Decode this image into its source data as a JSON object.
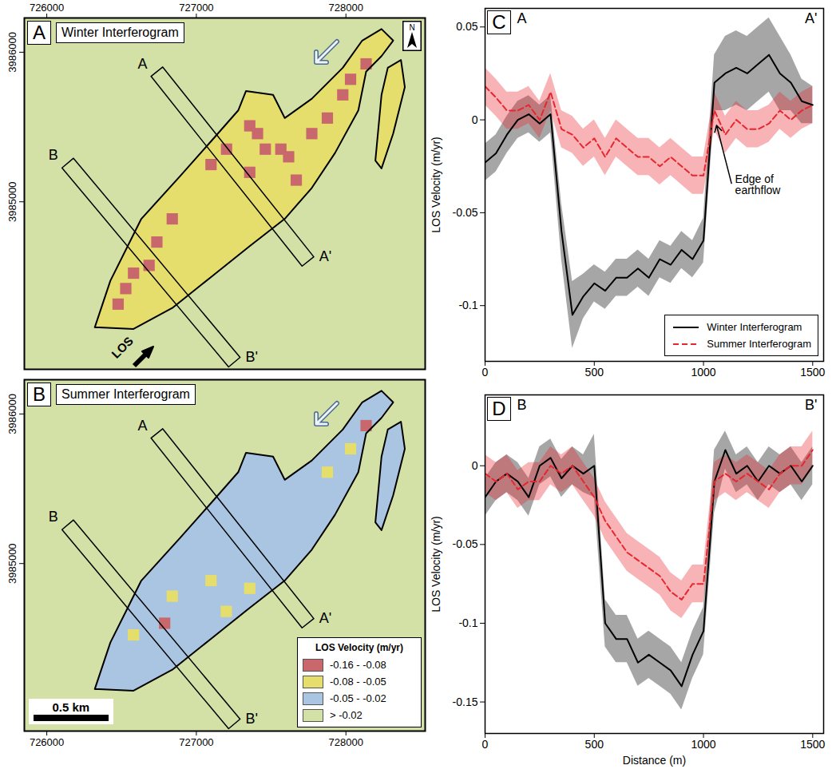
{
  "chart_data": [
    {
      "type": "map",
      "panel": "A",
      "title": "Winter Interferogram",
      "xlim": [
        725850,
        728530
      ],
      "ylim": [
        3983880,
        3986229
      ],
      "xticks": [
        726000,
        727000,
        728000
      ],
      "yticks": [
        3985000,
        3986000
      ],
      "outline": [
        {
          "x": [
            726321,
            726425,
            726632,
            726891,
            727098,
            727280,
            727332,
            727513,
            727591,
            727772,
            727979,
            728109,
            728238,
            728316,
            728238,
            728135,
            728083,
            727927,
            727772,
            727591,
            727358,
            727098,
            726839,
            726580
          ],
          "y": [
            3984161,
            3984472,
            3984886,
            3985171,
            3985404,
            3985611,
            3985741,
            3985715,
            3985560,
            3985689,
            3985896,
            3986078,
            3986155,
            3986078,
            3985974,
            3985870,
            3985611,
            3985326,
            3985093,
            3984886,
            3984705,
            3984497,
            3984290,
            3984150
          ]
        },
        {
          "x": [
            728280,
            728368,
            728394,
            728316,
            728238,
            728197,
            728238
          ],
          "y": [
            3985896,
            3985948,
            3985767,
            3985456,
            3985223,
            3985275,
            3985715
          ]
        }
      ],
      "flow_base_velocity": -0.065,
      "patches": {
        "x": [
          727357,
          727565,
          727772,
          727979,
          728135,
          727668,
          727357,
          727098,
          726736,
          726580,
          726839,
          726477,
          727202,
          727461,
          727876,
          728031,
          726684,
          726528,
          727617,
          727409
        ],
        "y": [
          3985508,
          3985352,
          3985456,
          3985715,
          3985922,
          3985145,
          3985197,
          3985249,
          3984731,
          3984523,
          3984886,
          3984316,
          3985352,
          3985352,
          3985560,
          3985819,
          3984575,
          3984420,
          3985301,
          3985456
        ],
        "values": [
          -0.1,
          -0.1,
          -0.1,
          -0.1,
          -0.1,
          -0.1,
          -0.1,
          -0.1,
          -0.1,
          -0.1,
          -0.1,
          -0.1,
          -0.1,
          -0.1,
          -0.1,
          -0.1,
          -0.1,
          -0.1,
          -0.1,
          -0.1
        ]
      },
      "profiles": [
        {
          "start": "A",
          "end": "A'",
          "x": [
            726736,
            727746
          ],
          "y": [
            3985870,
            3984601
          ]
        },
        {
          "start": "B",
          "end": "B'",
          "x": [
            726140,
            727254
          ],
          "y": [
            3985259,
            3983928
          ]
        }
      ],
      "north_label": "N",
      "los_label": "LOS"
    },
    {
      "type": "map",
      "panel": "B",
      "title": "Summer Interferogram",
      "xlim": [
        725850,
        728530
      ],
      "ylim": [
        3983880,
        3986229
      ],
      "xticks": [
        726000,
        727000,
        728000
      ],
      "yticks": [
        3985000,
        3986000
      ],
      "outline": [
        {
          "x": [
            726321,
            726425,
            726632,
            726891,
            727098,
            727280,
            727332,
            727513,
            727591,
            727772,
            727979,
            728109,
            728238,
            728316,
            728238,
            728135,
            728083,
            727927,
            727772,
            727591,
            727358,
            727098,
            726839,
            726580
          ],
          "y": [
            3984161,
            3984472,
            3984886,
            3985171,
            3985404,
            3985611,
            3985741,
            3985715,
            3985560,
            3985689,
            3985896,
            3986078,
            3986155,
            3986078,
            3985974,
            3985870,
            3985611,
            3985326,
            3985093,
            3984886,
            3984705,
            3984497,
            3984290,
            3984150
          ]
        },
        {
          "x": [
            728280,
            728368,
            728394,
            728316,
            728238,
            728197,
            728238
          ],
          "y": [
            3985896,
            3985948,
            3985767,
            3985456,
            3985223,
            3985275,
            3985715
          ]
        }
      ],
      "flow_base_velocity": -0.035,
      "patches": {
        "x": [
          726839,
          727098,
          727357,
          726580,
          727200,
          728031,
          727876,
          726788,
          728135
        ],
        "y": [
          3984782,
          3984886,
          3984834,
          3984523,
          3984680,
          3985767,
          3985611,
          3984601,
          3985922
        ],
        "values": [
          -0.065,
          -0.065,
          -0.065,
          -0.065,
          -0.065,
          -0.065,
          -0.065,
          -0.1,
          -0.1
        ]
      },
      "profiles": [
        {
          "start": "A",
          "end": "A'",
          "x": [
            726736,
            727746
          ],
          "y": [
            3985870,
            3984601
          ]
        },
        {
          "start": "B",
          "end": "B'",
          "x": [
            726140,
            727254
          ],
          "y": [
            3985259,
            3983928
          ]
        }
      ],
      "scale_bar": {
        "length": 500,
        "label": "0.5 km"
      },
      "color_bins": {
        "title": "LOS Velocity (m/yr)",
        "thresholds": [
          -0.08,
          -0.05,
          -0.02
        ],
        "colors": [
          "#c8676c",
          "#e6de6c",
          "#a9c5e2",
          "#d3e1a6"
        ],
        "labels": [
          "-0.16 - -0.08",
          "-0.08 - -0.05",
          "-0.05 - -0.02",
          "> -0.02"
        ]
      },
      "legend": "bottom-right"
    },
    {
      "type": "line",
      "panel": "C",
      "start_label": "A",
      "end_label": "A'",
      "ylabel": "LOS Velocity (m/yr)",
      "xlim": [
        0,
        1550
      ],
      "xticks": [
        0,
        500,
        1000,
        1500
      ],
      "ylim": [
        -0.13,
        0.06
      ],
      "yticks": [
        -0.1,
        -0.05,
        0,
        0.05
      ],
      "x": [
        0,
        50,
        100,
        150,
        200,
        250,
        300,
        350,
        400,
        450,
        500,
        550,
        600,
        650,
        700,
        750,
        800,
        850,
        900,
        950,
        1000,
        1050,
        1100,
        1150,
        1200,
        1250,
        1300,
        1350,
        1400,
        1450,
        1500
      ],
      "series": [
        {
          "name": "Winter Interferogram",
          "color": "#000000",
          "line_style": "solid",
          "values": [
            -0.023,
            -0.018,
            -0.008,
            0.0,
            0.003,
            -0.002,
            0.003,
            -0.06,
            -0.105,
            -0.095,
            -0.088,
            -0.092,
            -0.085,
            -0.085,
            -0.08,
            -0.085,
            -0.075,
            -0.078,
            -0.07,
            -0.075,
            -0.065,
            0.02,
            0.025,
            0.028,
            0.025,
            0.03,
            0.035,
            0.025,
            0.02,
            0.01,
            0.008
          ],
          "error": [
            0.01,
            0.01,
            0.01,
            0.01,
            0.01,
            0.01,
            0.01,
            0.015,
            0.018,
            0.012,
            0.01,
            0.01,
            0.01,
            0.01,
            0.01,
            0.01,
            0.01,
            0.01,
            0.01,
            0.01,
            0.012,
            0.015,
            0.02,
            0.02,
            0.02,
            0.02,
            0.02,
            0.02,
            0.015,
            0.012,
            0.01
          ]
        },
        {
          "name": "Summer Interferogram",
          "color": "#e8262e",
          "line_style": "dashed",
          "values": [
            0.018,
            0.012,
            0.005,
            0.005,
            0.008,
            0.0,
            0.015,
            -0.005,
            -0.008,
            -0.015,
            -0.01,
            -0.02,
            -0.01,
            -0.015,
            -0.02,
            -0.02,
            -0.025,
            -0.02,
            -0.025,
            -0.03,
            -0.03,
            0.005,
            -0.008,
            0.0,
            -0.005,
            -0.005,
            -0.002,
            0.005,
            0.0,
            0.005,
            0.008
          ],
          "error": [
            0.01,
            0.01,
            0.01,
            0.01,
            0.01,
            0.01,
            0.01,
            0.01,
            0.01,
            0.01,
            0.01,
            0.01,
            0.01,
            0.01,
            0.01,
            0.01,
            0.01,
            0.01,
            0.01,
            0.01,
            0.01,
            0.01,
            0.01,
            0.01,
            0.01,
            0.01,
            0.01,
            0.01,
            0.01,
            0.01,
            0.01
          ]
        }
      ],
      "legend": "bottom-right",
      "annotations": [
        {
          "text": "Edge of earthflow",
          "x": 1060,
          "y": -0.003,
          "text_x": 1130,
          "text_y": -0.035
        }
      ]
    },
    {
      "type": "line",
      "panel": "D",
      "start_label": "B",
      "end_label": "B'",
      "ylabel": "LOS Velocity (m/yr)",
      "xlabel": "Distance (m)",
      "xlim": [
        0,
        1550
      ],
      "xticks": [
        0,
        500,
        1000,
        1500
      ],
      "ylim": [
        -0.17,
        0.045
      ],
      "yticks": [
        -0.15,
        -0.1,
        -0.05,
        0
      ],
      "x": [
        0,
        50,
        100,
        150,
        200,
        250,
        300,
        350,
        400,
        450,
        500,
        550,
        600,
        650,
        700,
        750,
        800,
        850,
        900,
        950,
        1000,
        1050,
        1100,
        1150,
        1200,
        1250,
        1300,
        1350,
        1400,
        1450,
        1500
      ],
      "series": [
        {
          "name": "Winter Interferogram",
          "color": "#000000",
          "line_style": "solid",
          "values": [
            -0.02,
            -0.01,
            -0.005,
            -0.01,
            -0.02,
            0.0,
            0.005,
            -0.008,
            0.0,
            -0.005,
            0.0,
            -0.1,
            -0.11,
            -0.11,
            -0.125,
            -0.12,
            -0.125,
            -0.13,
            -0.14,
            -0.12,
            -0.105,
            -0.01,
            0.01,
            -0.005,
            0.0,
            -0.01,
            0.0,
            -0.005,
            0.0,
            -0.01,
            0.0
          ],
          "error": [
            0.012,
            0.012,
            0.012,
            0.012,
            0.012,
            0.012,
            0.012,
            0.012,
            0.012,
            0.012,
            0.02,
            0.015,
            0.015,
            0.015,
            0.015,
            0.015,
            0.015,
            0.015,
            0.015,
            0.015,
            0.015,
            0.02,
            0.012,
            0.012,
            0.012,
            0.012,
            0.012,
            0.012,
            0.012,
            0.012,
            0.012
          ]
        },
        {
          "name": "Summer Interferogram",
          "color": "#e8262e",
          "line_style": "dashed",
          "values": [
            -0.005,
            -0.01,
            -0.005,
            -0.015,
            -0.01,
            -0.01,
            0.0,
            -0.005,
            0.0,
            -0.01,
            -0.02,
            -0.035,
            -0.045,
            -0.055,
            -0.06,
            -0.065,
            -0.07,
            -0.08,
            -0.085,
            -0.075,
            -0.075,
            -0.01,
            -0.005,
            -0.01,
            -0.005,
            -0.01,
            -0.015,
            -0.005,
            0.0,
            0.0,
            0.01
          ],
          "error": [
            0.012,
            0.012,
            0.012,
            0.012,
            0.012,
            0.012,
            0.012,
            0.012,
            0.012,
            0.012,
            0.012,
            0.012,
            0.012,
            0.012,
            0.012,
            0.012,
            0.012,
            0.012,
            0.012,
            0.012,
            0.012,
            0.012,
            0.012,
            0.012,
            0.012,
            0.012,
            0.012,
            0.012,
            0.012,
            0.012,
            0.012
          ]
        }
      ]
    }
  ]
}
